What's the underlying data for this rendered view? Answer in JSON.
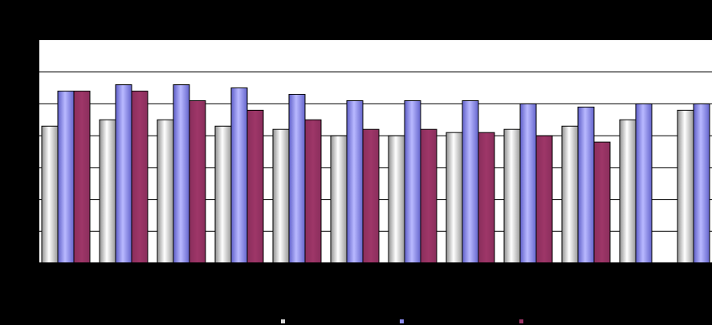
{
  "chart_data": {
    "type": "bar",
    "title": "",
    "xlabel": "",
    "ylabel": "",
    "ylim": [
      0,
      7
    ],
    "categories": [
      "",
      "",
      "",
      "",
      "",
      "",
      "",
      "",
      "",
      "",
      "",
      ""
    ],
    "series": [
      {
        "color": "#d9d9d9",
        "values": [
          4.3,
          4.5,
          4.5,
          4.3,
          4.2,
          4.0,
          4.0,
          4.1,
          4.2,
          4.3,
          4.5,
          4.8
        ]
      },
      {
        "color": "#8d8df0",
        "values": [
          5.4,
          5.6,
          5.6,
          5.5,
          5.3,
          5.1,
          5.1,
          5.1,
          5.0,
          4.9,
          5.0,
          5.0
        ]
      },
      {
        "color": "#9b3466",
        "values": [
          5.4,
          5.4,
          5.1,
          4.8,
          4.5,
          4.2,
          4.2,
          4.1,
          4.0,
          3.8,
          null,
          null
        ]
      }
    ],
    "grid": true,
    "legend": "bottom-center"
  }
}
